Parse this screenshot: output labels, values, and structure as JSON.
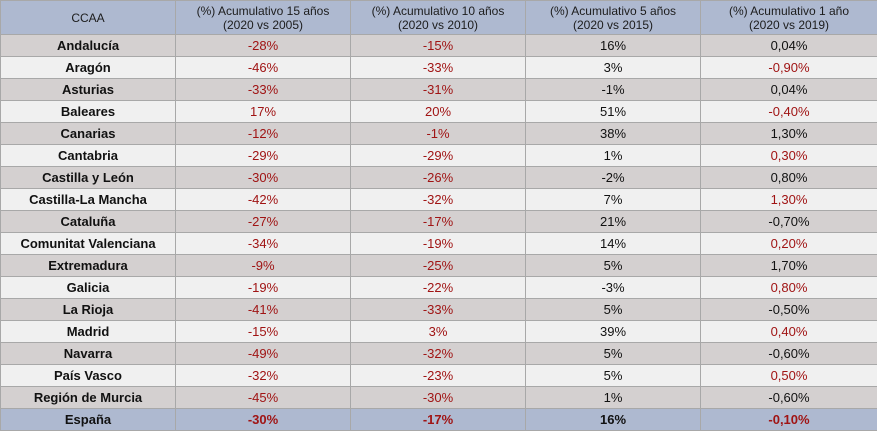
{
  "colors": {
    "header_bg": "#aeb9d0",
    "row_odd_bg": "#d4d0d0",
    "row_even_bg": "#f0f0f0",
    "negative_text": "#a01414",
    "neutral_text": "#111111"
  },
  "headers": [
    {
      "line1": "CCAA",
      "line2": ""
    },
    {
      "line1": "(%) Acumulativo 15 años",
      "line2": "(2020 vs 2005)"
    },
    {
      "line1": "(%) Acumulativo 10 años",
      "line2": "(2020 vs 2010)"
    },
    {
      "line1": "(%) Acumulativo 5 años",
      "line2": "(2020 vs 2015)"
    },
    {
      "line1": "(%) Acumulativo 1 año",
      "line2": "(2020 vs 2019)"
    }
  ],
  "rows": [
    {
      "name": "Andalucía",
      "cells": [
        {
          "v": "-28%",
          "red": true
        },
        {
          "v": "-15%",
          "red": true
        },
        {
          "v": "16%",
          "red": false
        },
        {
          "v": "0,04%",
          "red": false
        }
      ]
    },
    {
      "name": "Aragón",
      "cells": [
        {
          "v": "-46%",
          "red": true
        },
        {
          "v": "-33%",
          "red": true
        },
        {
          "v": "3%",
          "red": false
        },
        {
          "v": "-0,90%",
          "red": true
        }
      ]
    },
    {
      "name": "Asturias",
      "cells": [
        {
          "v": "-33%",
          "red": true
        },
        {
          "v": "-31%",
          "red": true
        },
        {
          "v": "-1%",
          "red": false
        },
        {
          "v": "0,04%",
          "red": false
        }
      ]
    },
    {
      "name": "Baleares",
      "cells": [
        {
          "v": "17%",
          "red": true
        },
        {
          "v": "20%",
          "red": true
        },
        {
          "v": "51%",
          "red": false
        },
        {
          "v": "-0,40%",
          "red": true
        }
      ]
    },
    {
      "name": "Canarias",
      "cells": [
        {
          "v": "-12%",
          "red": true
        },
        {
          "v": "-1%",
          "red": true
        },
        {
          "v": "38%",
          "red": false
        },
        {
          "v": "1,30%",
          "red": false
        }
      ]
    },
    {
      "name": "Cantabria",
      "cells": [
        {
          "v": "-29%",
          "red": true
        },
        {
          "v": "-29%",
          "red": true
        },
        {
          "v": "1%",
          "red": false
        },
        {
          "v": "0,30%",
          "red": true
        }
      ]
    },
    {
      "name": "Castilla y León",
      "cells": [
        {
          "v": "-30%",
          "red": true
        },
        {
          "v": "-26%",
          "red": true
        },
        {
          "v": "-2%",
          "red": false
        },
        {
          "v": "0,80%",
          "red": false
        }
      ]
    },
    {
      "name": "Castilla-La Mancha",
      "cells": [
        {
          "v": "-42%",
          "red": true
        },
        {
          "v": "-32%",
          "red": true
        },
        {
          "v": "7%",
          "red": false
        },
        {
          "v": "1,30%",
          "red": true
        }
      ]
    },
    {
      "name": "Cataluña",
      "cells": [
        {
          "v": "-27%",
          "red": true
        },
        {
          "v": "-17%",
          "red": true
        },
        {
          "v": "21%",
          "red": false
        },
        {
          "v": "-0,70%",
          "red": false
        }
      ]
    },
    {
      "name": "Comunitat Valenciana",
      "cells": [
        {
          "v": "-34%",
          "red": true
        },
        {
          "v": "-19%",
          "red": true
        },
        {
          "v": "14%",
          "red": false
        },
        {
          "v": "0,20%",
          "red": true
        }
      ]
    },
    {
      "name": "Extremadura",
      "cells": [
        {
          "v": "-9%",
          "red": true
        },
        {
          "v": "-25%",
          "red": true
        },
        {
          "v": "5%",
          "red": false
        },
        {
          "v": "1,70%",
          "red": false
        }
      ]
    },
    {
      "name": "Galicia",
      "cells": [
        {
          "v": "-19%",
          "red": true
        },
        {
          "v": "-22%",
          "red": true
        },
        {
          "v": "-3%",
          "red": false
        },
        {
          "v": "0,80%",
          "red": true
        }
      ]
    },
    {
      "name": "La Rioja",
      "cells": [
        {
          "v": "-41%",
          "red": true
        },
        {
          "v": "-33%",
          "red": true
        },
        {
          "v": "5%",
          "red": false
        },
        {
          "v": "-0,50%",
          "red": false
        }
      ]
    },
    {
      "name": "Madrid",
      "cells": [
        {
          "v": "-15%",
          "red": true
        },
        {
          "v": "3%",
          "red": true
        },
        {
          "v": "39%",
          "red": false
        },
        {
          "v": "0,40%",
          "red": true
        }
      ]
    },
    {
      "name": "Navarra",
      "cells": [
        {
          "v": "-49%",
          "red": true
        },
        {
          "v": "-32%",
          "red": true
        },
        {
          "v": "5%",
          "red": false
        },
        {
          "v": "-0,60%",
          "red": false
        }
      ]
    },
    {
      "name": "País Vasco",
      "cells": [
        {
          "v": "-32%",
          "red": true
        },
        {
          "v": "-23%",
          "red": true
        },
        {
          "v": "5%",
          "red": false
        },
        {
          "v": "0,50%",
          "red": true
        }
      ]
    },
    {
      "name": "Región de Murcia",
      "cells": [
        {
          "v": "-45%",
          "red": true
        },
        {
          "v": "-30%",
          "red": true
        },
        {
          "v": "1%",
          "red": false
        },
        {
          "v": "-0,60%",
          "red": false
        }
      ]
    }
  ],
  "total": {
    "name": "España",
    "cells": [
      {
        "v": "-30%",
        "red": true
      },
      {
        "v": "-17%",
        "red": true
      },
      {
        "v": "16%",
        "red": false
      },
      {
        "v": "-0,10%",
        "red": true
      }
    ]
  }
}
